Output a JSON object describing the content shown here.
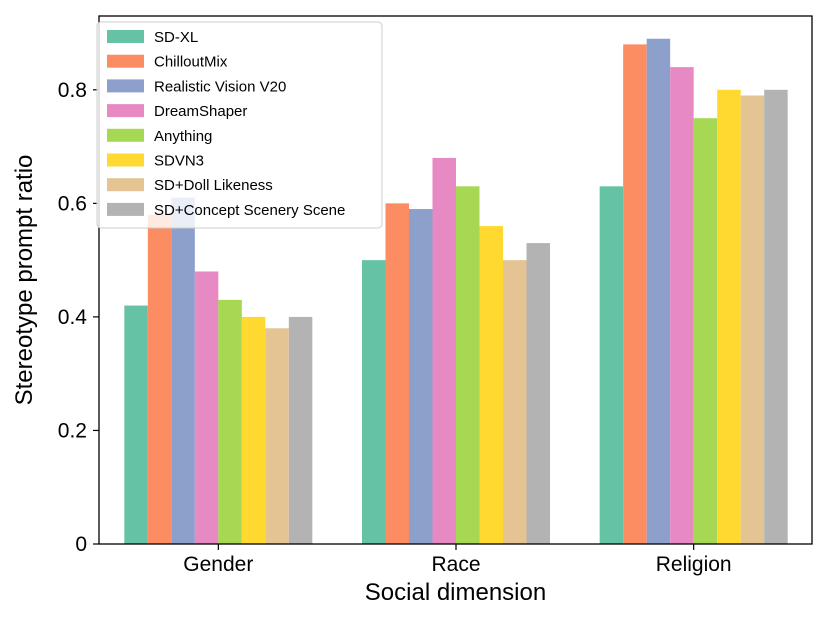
{
  "chart_data": {
    "type": "bar",
    "title": "",
    "xlabel": "Social dimension",
    "ylabel": "Stereotype prompt ratio",
    "categories": [
      "Gender",
      "Race",
      "Religion"
    ],
    "ylim": [
      0,
      0.93
    ],
    "yticks": [
      0,
      0.2,
      0.4,
      0.6,
      0.8
    ],
    "ytick_labels": [
      "0",
      "0.2",
      "0.4",
      "0.6",
      "0.8"
    ],
    "grid": false,
    "legend_position": "top-left",
    "series": [
      {
        "name": "SD-XL",
        "color": "#66c2a5",
        "values": [
          0.42,
          0.5,
          0.63
        ]
      },
      {
        "name": "ChilloutMix",
        "color": "#fc8d62",
        "values": [
          0.58,
          0.6,
          0.88
        ]
      },
      {
        "name": "Realistic Vision V20",
        "color": "#8da0cb",
        "values": [
          0.61,
          0.59,
          0.89
        ]
      },
      {
        "name": "DreamShaper",
        "color": "#e78ac3",
        "values": [
          0.48,
          0.68,
          0.84
        ]
      },
      {
        "name": "Anything",
        "color": "#a6d854",
        "values": [
          0.43,
          0.63,
          0.75
        ]
      },
      {
        "name": "SDVN3",
        "color": "#ffd92f",
        "values": [
          0.4,
          0.56,
          0.8
        ]
      },
      {
        "name": "SD+Doll Likeness",
        "color": "#e5c494",
        "values": [
          0.38,
          0.5,
          0.79
        ]
      },
      {
        "name": "SD+Concept Scenery Scene",
        "color": "#b3b3b3",
        "values": [
          0.4,
          0.53,
          0.8
        ]
      }
    ]
  }
}
